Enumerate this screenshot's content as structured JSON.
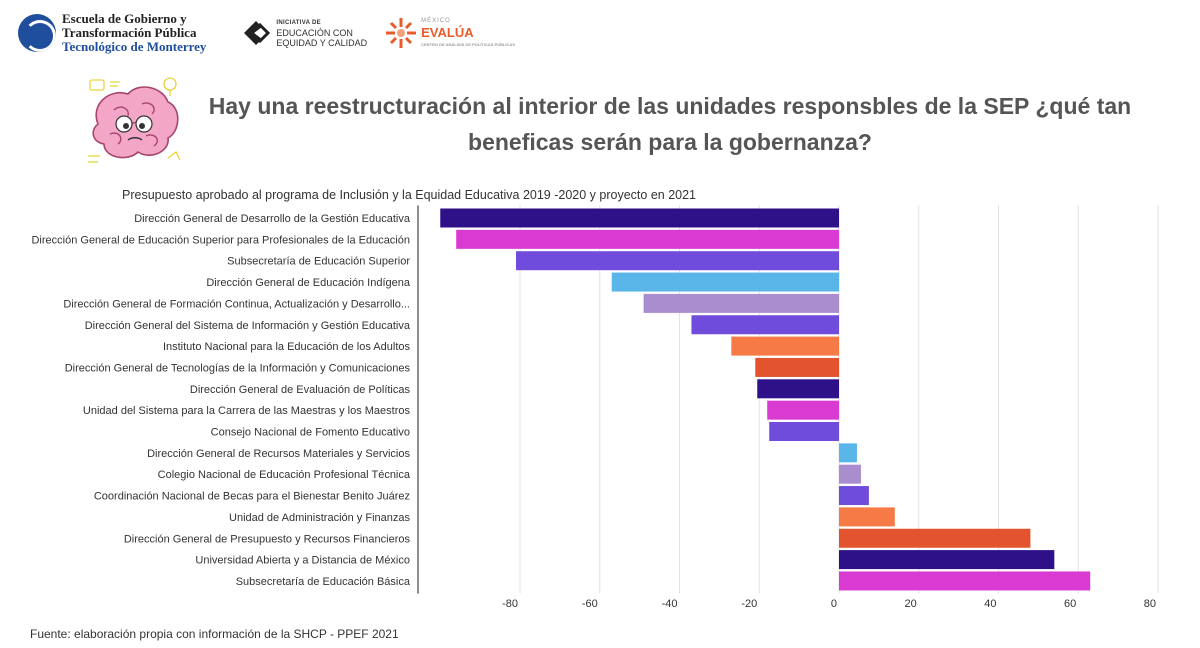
{
  "logos": {
    "tec_line1": "Escuela de Gobierno y",
    "tec_line2": "Transformación Pública",
    "tec_line3": "Tecnológico de Monterrey",
    "edu_small": "INICIATIVA DE",
    "edu_line1": "EDUCACIÓN CON",
    "edu_line2": "EQUIDAD Y CALIDAD",
    "eva_small": "MÉXICO",
    "eva_name": "EVALÚA",
    "eva_tag": "CENTRO DE ANÁLISIS DE POLÍTICAS PÚBLICAS"
  },
  "headline": {
    "line1": "Hay una reestructuración al interior de las unidades responsbles de la SEP ¿qué tan",
    "line2": "beneficas serán para la gobernanza?"
  },
  "source": "Fuente: elaboración propia con información de la SHCP - PPEF 2021",
  "chart_data": {
    "type": "bar",
    "orientation": "horizontal",
    "title": "Presupuesto aprobado al programa de Inclusión y la Equidad Educativa 2019 -2020 y proyecto en 2021",
    "xlim": [
      -100,
      80
    ],
    "xticks": [
      -80,
      -60,
      -40,
      -20,
      0,
      20,
      40,
      60,
      80
    ],
    "grid": true,
    "categories": [
      "Dirección General de Desarrollo de la Gestión Educativa",
      "Dirección General de Educación Superior para Profesionales de la Educación",
      "Subsecretaría de Educación Superior",
      "Dirección General de Educación Indígena",
      "Dirección General de Formación Continua, Actualización y Desarrollo...",
      "Dirección General del Sistema de Información y Gestión Educativa",
      "Instituto Nacional para la Educación de los Adultos",
      "Dirección General de Tecnologías de la Información y Comunicaciones",
      "Dirección General de Evaluación de Políticas",
      "Unidad del Sistema para la Carrera de las Maestras y los Maestros",
      "Consejo Nacional de Fomento Educativo",
      "Dirección General de Recursos Materiales y Servicios",
      "Colegio Nacional de Educación Profesional Técnica",
      "Coordinación Nacional de Becas para el Bienestar Benito Juárez",
      "Unidad de Administración y Finanzas",
      "Dirección General de Presupuesto y Recursos Financieros",
      "Universidad Abierta y a Distancia de México",
      "Subsecretaría de Educación Básica"
    ],
    "values": [
      -100,
      -96,
      -81,
      -57,
      -49,
      -37,
      -27,
      -21,
      -20.5,
      -18,
      -17.5,
      4.5,
      5.5,
      7.5,
      14,
      48,
      54,
      63
    ],
    "colors": [
      "#2e1188",
      "#d93ad1",
      "#6f4cdc",
      "#5ab6e8",
      "#aa8dcf",
      "#6f4cdc",
      "#f57a45",
      "#e2532e",
      "#2e1188",
      "#d93ad1",
      "#6f4cdc",
      "#5ab6e8",
      "#aa8dcf",
      "#6f4cdc",
      "#f57a45",
      "#e2532e",
      "#2e1188",
      "#d93ad1"
    ]
  }
}
